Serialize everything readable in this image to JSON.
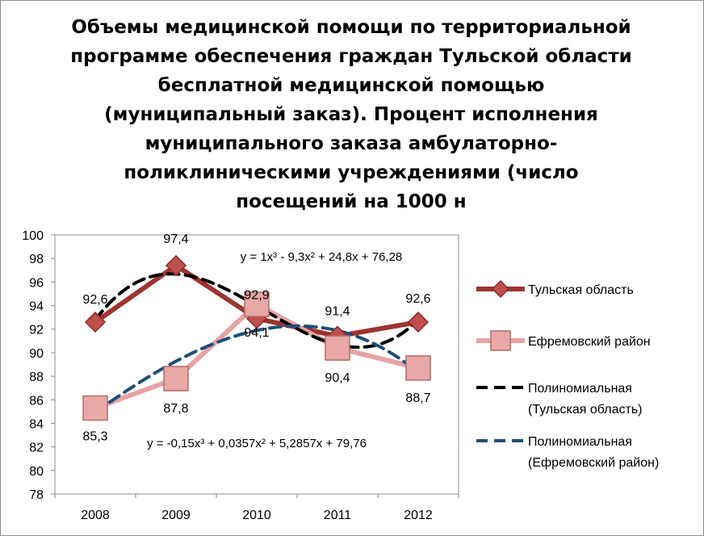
{
  "chart_data": {
    "type": "line",
    "title": "Объемы медицинской помощи по территориальной\nпрограмме обеспечения граждан Тульской области\nбесплатной медицинской помощью\n(муниципальный заказ).  Процент исполнения\nмуниципального заказа  амбулаторно-\nполиклиническими учреждениями (число\nпосещений на 1000 н",
    "categories": [
      "2008",
      "2009",
      "2010",
      "2011",
      "2012"
    ],
    "ylim": [
      78,
      100
    ],
    "ytick_step": 2,
    "ytick_labels": [
      "78",
      "80",
      "82",
      "84",
      "86",
      "88",
      "90",
      "92",
      "94",
      "96",
      "98",
      "100"
    ],
    "grid": false,
    "legend_position": "right",
    "series": [
      {
        "name": "Тульская область",
        "values": [
          92.6,
          97.4,
          92.9,
          91.4,
          92.6
        ],
        "labels": [
          "92,6",
          "97,4",
          "92,9",
          "91,4",
          "92,6"
        ],
        "color": "#9e3431",
        "marker": "diamond",
        "style": "solid"
      },
      {
        "name": "Ефремовский район",
        "values": [
          85.3,
          87.8,
          94.1,
          90.4,
          88.7
        ],
        "labels": [
          "85,3",
          "87,8",
          "94,1",
          "90,4",
          "88,7"
        ],
        "color": "#e6a3a3",
        "marker": "square",
        "style": "solid"
      },
      {
        "name": "Полиномиальная (Тульская область)",
        "legend_lines": [
          "Полиномиальная",
          "(Тульская область)"
        ],
        "type": "trendline",
        "coefficients": [
          1,
          -9.3,
          24.8,
          76.28
        ],
        "equation": "y = 1x³ - 9,3x² + 24,8x + 76,28",
        "color": "#000000",
        "style": "dashed"
      },
      {
        "name": "Полиномиальная (Ефремовский район)",
        "legend_lines": [
          "Полиномиальная",
          "(Ефремовский район)"
        ],
        "type": "trendline",
        "coefficients": [
          -0.15,
          0.0357,
          5.2857,
          79.76
        ],
        "equation": "y = -0,15x³ + 0,0357x² + 5,2857x + 79,76",
        "color": "#1f4e79",
        "style": "dashed"
      }
    ]
  }
}
